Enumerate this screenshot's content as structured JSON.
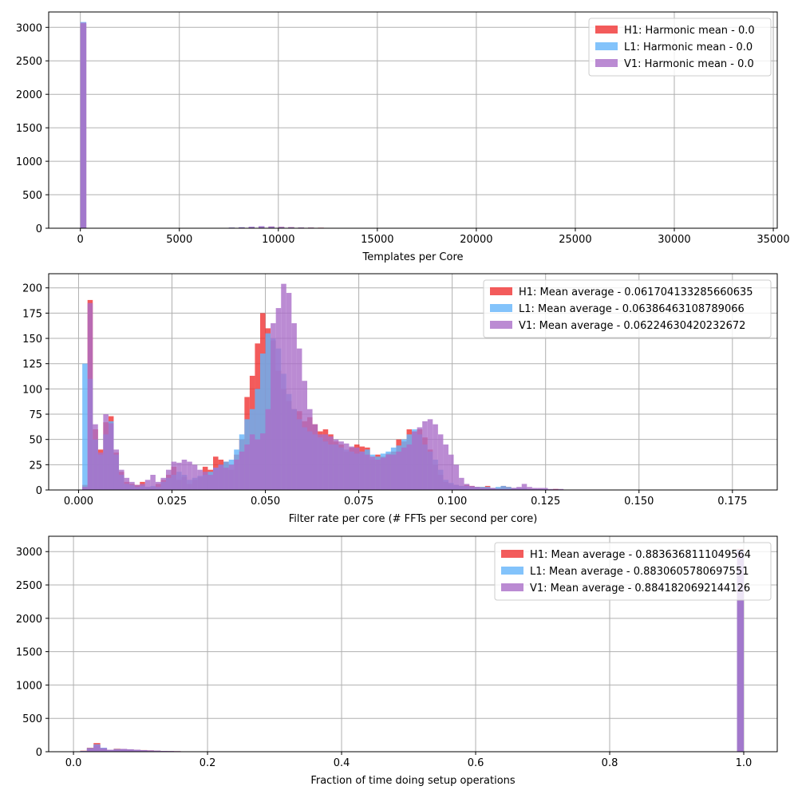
{
  "colors": {
    "H1": "#f03232",
    "L1": "#64b4fa",
    "V1": "#aa6ec8",
    "grid": "#b0b0b0",
    "axis": "#000000"
  },
  "chart_data": [
    {
      "type": "histogram",
      "xlabel": "Templates per Core",
      "ylabel": "",
      "xlim": [
        -1600,
        35200
      ],
      "ylim": [
        0,
        3230
      ],
      "xticks": [
        0,
        5000,
        10000,
        15000,
        20000,
        25000,
        30000,
        35000
      ],
      "xtick_labels": [
        "0",
        "5000",
        "10000",
        "15000",
        "20000",
        "25000",
        "30000",
        "35000"
      ],
      "yticks": [
        0,
        500,
        1000,
        1500,
        2000,
        2500,
        3000
      ],
      "ytick_labels": [
        "0",
        "500",
        "1000",
        "1500",
        "2000",
        "2500",
        "3000"
      ],
      "grid": true,
      "legend_position": "top-right",
      "bin_width": 300,
      "series": [
        {
          "name": "H1: Harmonic mean  - 0.0",
          "color_key": "H1",
          "bins": [
            [
              0,
              3050
            ],
            [
              3000,
              5
            ],
            [
              7500,
              8
            ],
            [
              8000,
              12
            ],
            [
              8500,
              18
            ],
            [
              9000,
              22
            ],
            [
              9500,
              25
            ],
            [
              10000,
              20
            ],
            [
              10500,
              16
            ],
            [
              11000,
              12
            ],
            [
              11500,
              10
            ],
            [
              12000,
              8
            ],
            [
              12500,
              6
            ],
            [
              13000,
              5
            ],
            [
              14000,
              4
            ],
            [
              15300,
              3
            ]
          ]
        },
        {
          "name": "L1: Harmonic mean  - 0.0",
          "color_key": "L1",
          "bins": [
            [
              0,
              3080
            ],
            [
              3000,
              4
            ],
            [
              7500,
              10
            ],
            [
              8000,
              15
            ],
            [
              8500,
              20
            ],
            [
              9000,
              28
            ],
            [
              9500,
              24
            ],
            [
              10000,
              18
            ],
            [
              10500,
              14
            ],
            [
              11000,
              10
            ],
            [
              11500,
              8
            ],
            [
              12000,
              6
            ],
            [
              12500,
              5
            ],
            [
              13000,
              4
            ],
            [
              14000,
              3
            ]
          ]
        },
        {
          "name": "V1: Harmonic mean  - 0.0",
          "color_key": "V1",
          "bins": [
            [
              0,
              3070
            ],
            [
              3000,
              6
            ],
            [
              7500,
              9
            ],
            [
              8000,
              14
            ],
            [
              8500,
              22
            ],
            [
              9000,
              30
            ],
            [
              9500,
              26
            ],
            [
              10000,
              20
            ],
            [
              10500,
              15
            ],
            [
              11000,
              11
            ],
            [
              11500,
              9
            ],
            [
              12000,
              7
            ],
            [
              12500,
              6
            ],
            [
              13000,
              5
            ],
            [
              14000,
              4
            ],
            [
              15300,
              3
            ]
          ]
        }
      ]
    },
    {
      "type": "histogram",
      "xlabel": "Filter rate per core (# FFTs per second per core)",
      "ylabel": "",
      "xlim": [
        -0.008,
        0.187
      ],
      "ylim": [
        0,
        214
      ],
      "xticks": [
        0,
        0.025,
        0.05,
        0.075,
        0.1,
        0.125,
        0.15,
        0.175
      ],
      "xtick_labels": [
        "0.000",
        "0.025",
        "0.050",
        "0.075",
        "0.100",
        "0.125",
        "0.150",
        "0.175"
      ],
      "yticks": [
        0,
        25,
        50,
        75,
        100,
        125,
        150,
        175,
        200
      ],
      "ytick_labels": [
        "0",
        "25",
        "50",
        "75",
        "100",
        "125",
        "150",
        "175",
        "200"
      ],
      "grid": true,
      "legend_position": "top-right",
      "bin_start": 0.001,
      "bin_width": 0.0014,
      "series": [
        {
          "name": "H1: Mean average - 0.061704133285660635",
          "color_key": "H1",
          "values": [
            5,
            188,
            60,
            40,
            67,
            73,
            37,
            18,
            8,
            6,
            5,
            8,
            3,
            3,
            6,
            10,
            15,
            23,
            10,
            13,
            6,
            10,
            13,
            23,
            20,
            33,
            30,
            28,
            20,
            35,
            50,
            92,
            113,
            145,
            175,
            160,
            148,
            118,
            100,
            88,
            80,
            78,
            68,
            72,
            65,
            58,
            60,
            55,
            48,
            45,
            38,
            42,
            45,
            43,
            42,
            30,
            35,
            33,
            36,
            38,
            50,
            48,
            60,
            58,
            60,
            52,
            40,
            25,
            15,
            8,
            6,
            5,
            4,
            5,
            4,
            3,
            3,
            4,
            2,
            2,
            4,
            3,
            2,
            2,
            2,
            1,
            1,
            1,
            0,
            0,
            1,
            0,
            0,
            0,
            0,
            0,
            0,
            0,
            0,
            0,
            0,
            0,
            0,
            0,
            0,
            0,
            0,
            0,
            0,
            0,
            0,
            0,
            0,
            0,
            0,
            0,
            0,
            0,
            0,
            0,
            0,
            0,
            0,
            0,
            0,
            0
          ]
        },
        {
          "name": "L1: Mean average - 0.06386463108789066",
          "color_key": "L1",
          "values": [
            125,
            110,
            50,
            35,
            55,
            68,
            35,
            15,
            6,
            5,
            3,
            4,
            3,
            4,
            3,
            8,
            12,
            15,
            18,
            15,
            10,
            12,
            14,
            15,
            18,
            22,
            25,
            28,
            30,
            40,
            55,
            70,
            80,
            100,
            135,
            155,
            150,
            140,
            115,
            95,
            80,
            70,
            62,
            58,
            55,
            52,
            48,
            45,
            45,
            42,
            40,
            38,
            36,
            38,
            40,
            35,
            33,
            36,
            38,
            42,
            44,
            50,
            55,
            60,
            55,
            45,
            38,
            30,
            20,
            10,
            7,
            5,
            4,
            4,
            3,
            3,
            3,
            3,
            2,
            3,
            4,
            3,
            2,
            2,
            2,
            1,
            1,
            1,
            1,
            0,
            0,
            0,
            0,
            0,
            0,
            0,
            0,
            0,
            0,
            0,
            0,
            0,
            0,
            0,
            0,
            0,
            0,
            0,
            0,
            0,
            0,
            0,
            0,
            0,
            0,
            0,
            0,
            0,
            0,
            0,
            0,
            0,
            0,
            0,
            0,
            0
          ]
        },
        {
          "name": "V1: Mean average - 0.06224630420232672",
          "color_key": "V1",
          "values": [
            3,
            185,
            65,
            37,
            75,
            66,
            40,
            20,
            12,
            8,
            5,
            6,
            10,
            15,
            8,
            12,
            20,
            28,
            27,
            30,
            28,
            25,
            20,
            18,
            15,
            22,
            25,
            22,
            25,
            30,
            38,
            45,
            55,
            50,
            56,
            80,
            165,
            180,
            204,
            195,
            165,
            140,
            108,
            80,
            65,
            55,
            55,
            53,
            50,
            48,
            46,
            43,
            42,
            38,
            35,
            33,
            30,
            32,
            35,
            35,
            38,
            42,
            45,
            58,
            62,
            68,
            70,
            65,
            55,
            45,
            35,
            25,
            12,
            6,
            4,
            3,
            2,
            2,
            2,
            1,
            1,
            1,
            2,
            3,
            6,
            3,
            2,
            2,
            2,
            1,
            1,
            1,
            0,
            0,
            0,
            0,
            0,
            0,
            0,
            0,
            0,
            0,
            0,
            0,
            0,
            0,
            0,
            0,
            0,
            0,
            0,
            0,
            0,
            0,
            0,
            0,
            0,
            0,
            0,
            0,
            0,
            0,
            0,
            0,
            0,
            0
          ]
        }
      ]
    },
    {
      "type": "histogram",
      "xlabel": "Fraction of time doing setup operations",
      "ylabel": "",
      "xlim": [
        -0.037,
        1.05
      ],
      "ylim": [
        0,
        3230
      ],
      "xticks": [
        0,
        0.2,
        0.4,
        0.6,
        0.8,
        1.0
      ],
      "xtick_labels": [
        "0.0",
        "0.2",
        "0.4",
        "0.6",
        "0.8",
        "1.0"
      ],
      "yticks": [
        0,
        500,
        1000,
        1500,
        2000,
        2500,
        3000
      ],
      "ytick_labels": [
        "0",
        "500",
        "1000",
        "1500",
        "2000",
        "2500",
        "3000"
      ],
      "grid": true,
      "legend_position": "top-right",
      "bin_start": 0.0,
      "bin_width": 0.01,
      "series": [
        {
          "name": "H1: Mean average - 0.8836368111049564",
          "color_key": "H1",
          "bins": [
            [
              0.01,
              15
            ],
            [
              0.02,
              60
            ],
            [
              0.03,
              130
            ],
            [
              0.04,
              50
            ],
            [
              0.05,
              20
            ],
            [
              0.06,
              45
            ],
            [
              0.07,
              40
            ],
            [
              0.08,
              35
            ],
            [
              0.09,
              30
            ],
            [
              0.1,
              25
            ],
            [
              0.11,
              20
            ],
            [
              0.12,
              15
            ],
            [
              0.13,
              12
            ],
            [
              0.14,
              10
            ],
            [
              0.15,
              8
            ],
            [
              0.16,
              5
            ],
            [
              0.2,
              5
            ],
            [
              0.21,
              3
            ],
            [
              0.99,
              3040
            ]
          ]
        },
        {
          "name": "L1: Mean average - 0.8830605780697551",
          "color_key": "L1",
          "bins": [
            [
              0.01,
              12
            ],
            [
              0.02,
              55
            ],
            [
              0.03,
              110
            ],
            [
              0.04,
              60
            ],
            [
              0.05,
              25
            ],
            [
              0.06,
              40
            ],
            [
              0.07,
              38
            ],
            [
              0.08,
              34
            ],
            [
              0.09,
              28
            ],
            [
              0.1,
              22
            ],
            [
              0.11,
              18
            ],
            [
              0.12,
              14
            ],
            [
              0.13,
              11
            ],
            [
              0.14,
              9
            ],
            [
              0.15,
              7
            ],
            [
              0.16,
              5
            ],
            [
              0.2,
              4
            ],
            [
              0.21,
              3
            ],
            [
              0.99,
              3030
            ]
          ]
        },
        {
          "name": "V1: Mean average - 0.8841820692144126",
          "color_key": "V1",
          "bins": [
            [
              0.01,
              10
            ],
            [
              0.02,
              50
            ],
            [
              0.03,
              100
            ],
            [
              0.04,
              55
            ],
            [
              0.05,
              30
            ],
            [
              0.06,
              35
            ],
            [
              0.07,
              42
            ],
            [
              0.08,
              36
            ],
            [
              0.09,
              30
            ],
            [
              0.1,
              24
            ],
            [
              0.11,
              20
            ],
            [
              0.12,
              16
            ],
            [
              0.13,
              12
            ],
            [
              0.14,
              10
            ],
            [
              0.15,
              8
            ],
            [
              0.16,
              6
            ],
            [
              0.2,
              5
            ],
            [
              0.21,
              4
            ],
            [
              0.99,
              3010
            ]
          ]
        }
      ]
    }
  ]
}
